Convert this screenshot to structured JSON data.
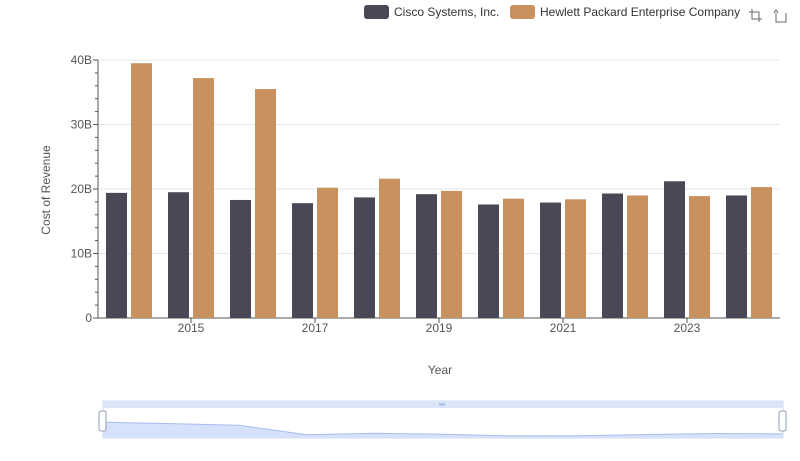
{
  "chart_data": {
    "type": "bar",
    "title": "",
    "xlabel": "Year",
    "ylabel": "Cost of Revenue",
    "categories": [
      "2014",
      "2015",
      "2016",
      "2017",
      "2018",
      "2019",
      "2020",
      "2021",
      "2022",
      "2023",
      "2024"
    ],
    "x_tick_labels": [
      "2015",
      "2017",
      "2019",
      "2021",
      "2023"
    ],
    "y_tick_labels": [
      "0",
      "10B",
      "20B",
      "30B",
      "40B"
    ],
    "ylim": [
      0,
      40
    ],
    "y_unit": "B",
    "grid": "horizontal",
    "legend_position": "top-right",
    "series": [
      {
        "name": "Cisco Systems, Inc.",
        "color": "#4a4856",
        "values": [
          19.4,
          19.5,
          18.3,
          17.8,
          18.7,
          19.2,
          17.6,
          17.9,
          19.3,
          21.2,
          19.0
        ]
      },
      {
        "name": "Hewlett Packard Enterprise Company",
        "color": "#c8915e",
        "values": [
          39.5,
          37.2,
          35.5,
          20.2,
          21.6,
          19.7,
          18.5,
          18.4,
          19.0,
          18.9,
          20.3
        ]
      }
    ],
    "overview_slider": {
      "range_start": 0,
      "range_end": 1,
      "fill_color": "#d6e2fb",
      "line_color": "#a7bdf0"
    }
  },
  "toolbar": {
    "icons": [
      "zoom-select-icon",
      "zoom-reset-icon"
    ]
  }
}
